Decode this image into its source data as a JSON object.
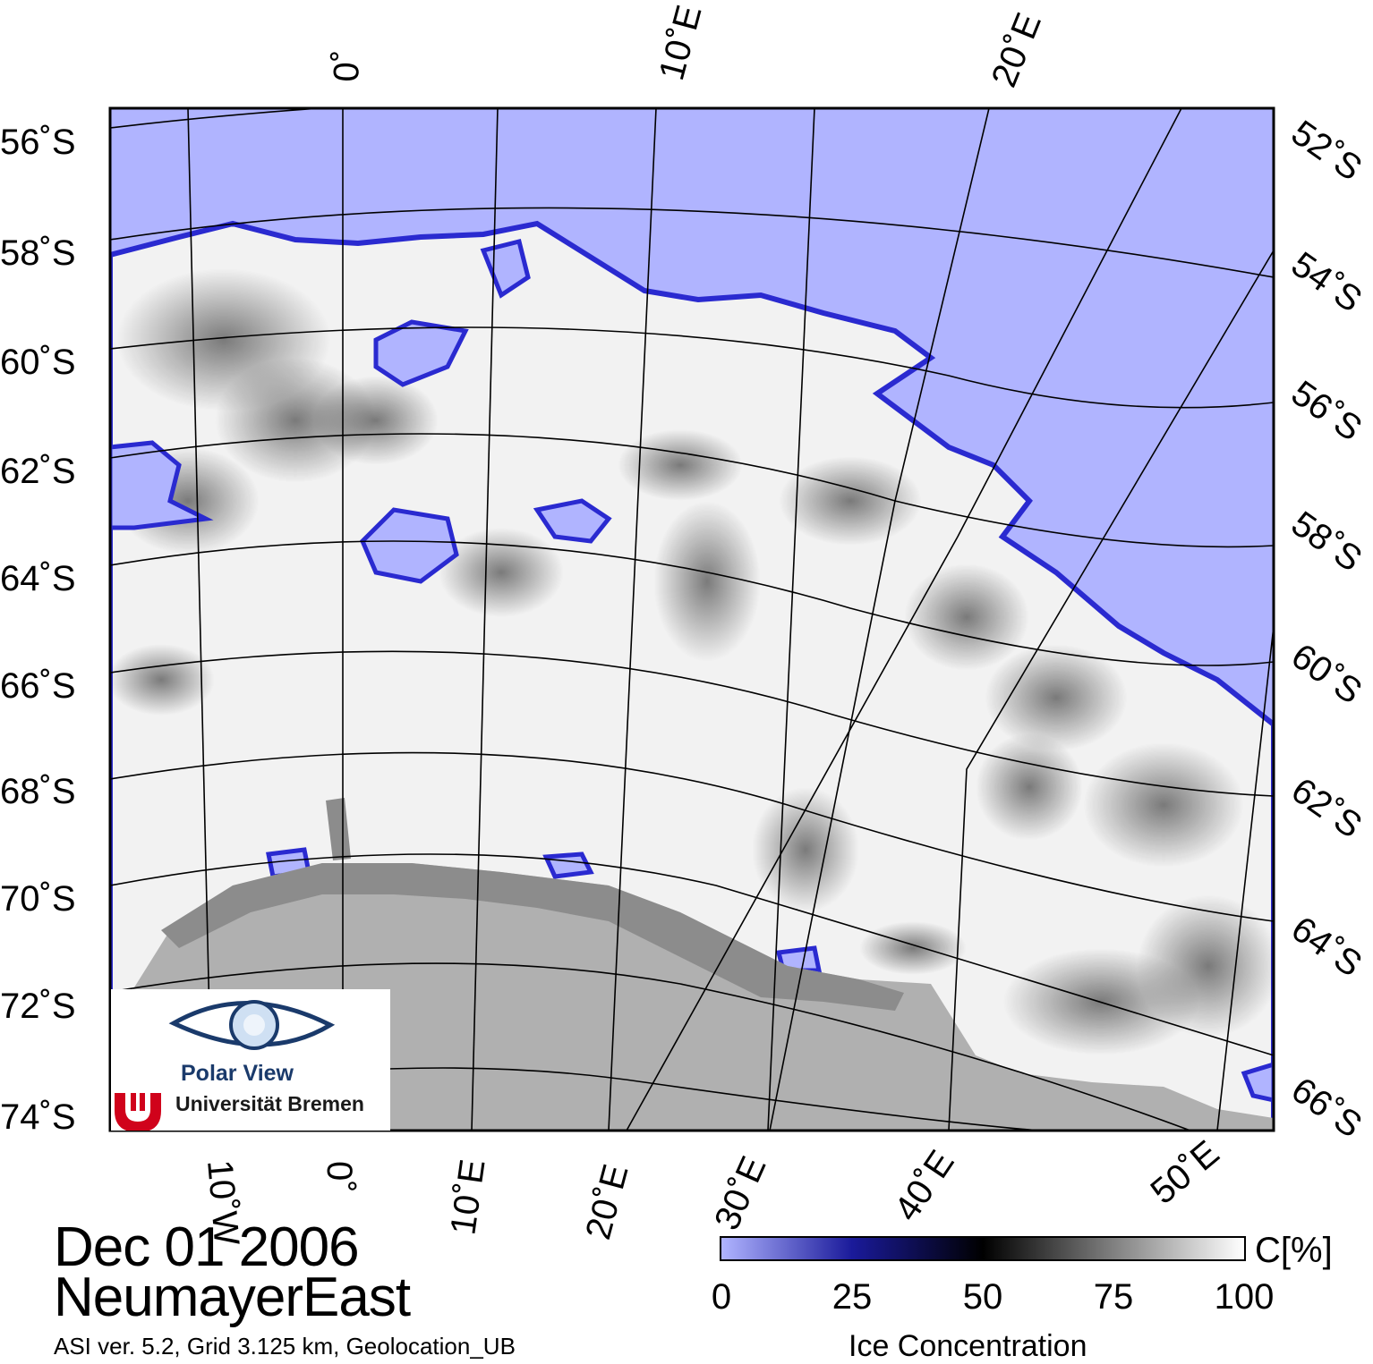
{
  "map": {
    "lat_labels_left": [
      "56˚S",
      "58˚S",
      "60˚S",
      "62˚S",
      "64˚S",
      "66˚S",
      "68˚S",
      "70˚S",
      "72˚S",
      "74˚S"
    ],
    "lat_labels_right": [
      "52˚S",
      "54˚S",
      "56˚S",
      "58˚S",
      "60˚S",
      "62˚S",
      "64˚S",
      "66˚S"
    ],
    "lon_labels_top": [
      "0˚",
      "10˚E",
      "20˚E"
    ],
    "lon_labels_bottom": [
      "10˚W",
      "0˚",
      "10˚E",
      "20˚E",
      "30˚E",
      "40˚E",
      "50˚E"
    ],
    "colors": {
      "open_water": "#b0b4ff",
      "ice_edge": "#2a2ad0",
      "continent": "#b0b0b0",
      "ice_shelf": "#8c8c8c",
      "high_ice": "#ffffff"
    }
  },
  "footer": {
    "date": "Dec 01 2006",
    "region": "NeumayerEast",
    "info": "ASI ver. 5.2,  Grid 3.125 km, Geolocation_UB"
  },
  "logo": {
    "line1": "Polar View",
    "line2": "Universität Bremen"
  },
  "colorbar": {
    "ticks": [
      "0",
      "25",
      "50",
      "75",
      "100"
    ],
    "unit": "C[%]",
    "label": "Ice Concentration",
    "stops": [
      "#b0b4ff",
      "#1a1a9a",
      "#000000",
      "#808080",
      "#ffffff"
    ]
  }
}
